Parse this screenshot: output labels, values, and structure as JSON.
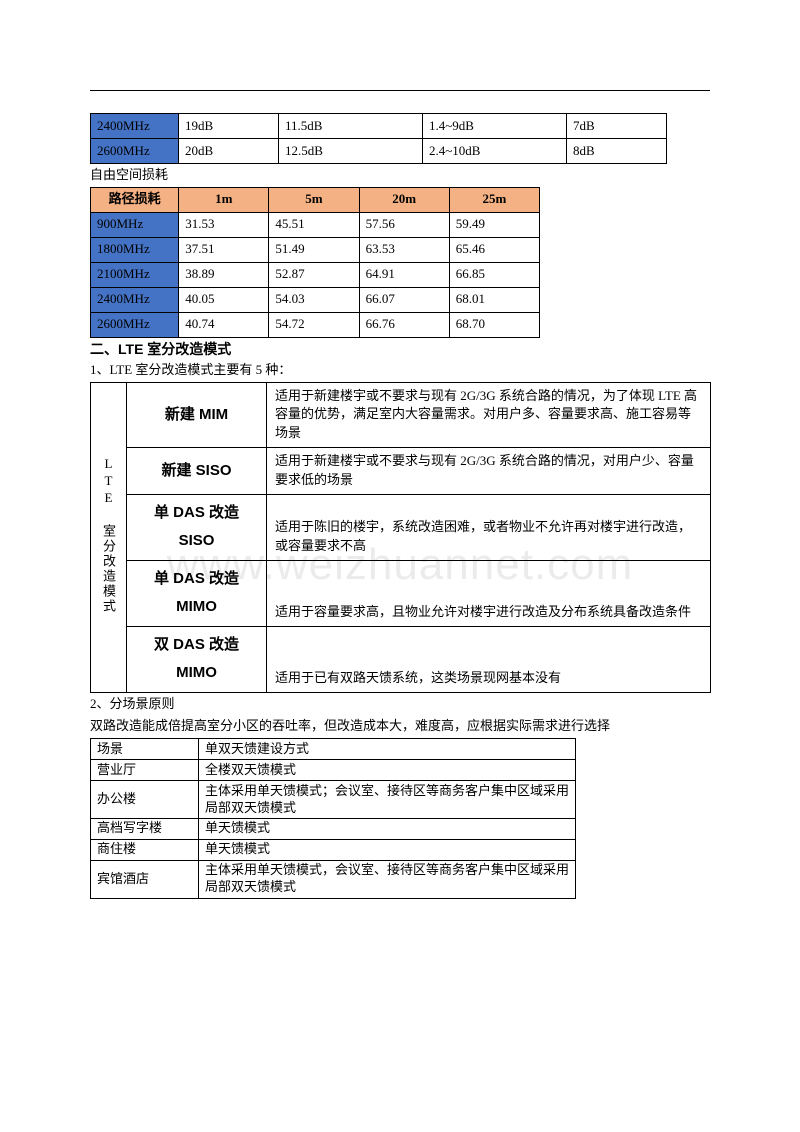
{
  "watermark": "www.weizhuannet.com",
  "colors": {
    "blue_header": "#4472c4",
    "orange_header": "#f4b183",
    "border": "#000000"
  },
  "table_top": {
    "type": "table",
    "rows": [
      [
        "2400MHz",
        "19dB",
        "11.5dB",
        "1.4~9dB",
        "7dB"
      ],
      [
        "2600MHz",
        "20dB",
        "12.5dB",
        "2.4~10dB",
        "8dB"
      ]
    ]
  },
  "loss_label": "自由空间损耗",
  "table_loss": {
    "type": "table",
    "headers": [
      "路径损耗",
      "1m",
      "5m",
      "20m",
      "25m"
    ],
    "rows": [
      [
        "900MHz",
        "31.53",
        "45.51",
        "57.56",
        "59.49"
      ],
      [
        "1800MHz",
        "37.51",
        "51.49",
        "63.53",
        "65.46"
      ],
      [
        "2100MHz",
        "38.89",
        "52.87",
        "64.91",
        "66.85"
      ],
      [
        "2400MHz",
        "40.05",
        "54.03",
        "66.07",
        "68.01"
      ],
      [
        "2600MHz",
        "40.74",
        "54.72",
        "66.76",
        "68.70"
      ]
    ]
  },
  "section2": {
    "title": "二、LTE 室分改造模式",
    "sub1": "1、LTE 室分改造模式主要有 5 种：",
    "vlabel": "LTE 室分改造模式",
    "modes": [
      {
        "name": "新建 MIM",
        "desc": "适用于新建楼宇或不要求与现有 2G/3G 系统合路的情况，为了体现 LTE 高容量的优势，满足室内大容量需求。对用户多、容量要求高、施工容易等场景"
      },
      {
        "name": "新建 SISO",
        "desc": "适用于新建楼宇或不要求与现有 2G/3G 系统合路的情况，对用户少、容量要求低的场景"
      },
      {
        "name_html": "单 DAS 改造<br>SISO",
        "desc": "适用于陈旧的楼宇，系统改造困难，或者物业不允许再对楼宇进行改造，或容量要求不高"
      },
      {
        "name_html": "单 DAS 改造<br>MIMO",
        "desc": "适用于容量要求高，且物业允许对楼宇进行改造及分布系统具备改造条件"
      },
      {
        "name_html": "双 DAS 改造<br>MIMO",
        "desc": "适用于已有双路天馈系统，这类场景现网基本没有"
      }
    ],
    "sub2": "2、分场景原则",
    "sub2_desc": "双路改造能成倍提高室分小区的吞吐率，但改造成本大，难度高，应根据实际需求进行选择"
  },
  "table_scene": {
    "type": "table",
    "headers": [
      "场景",
      "单双天馈建设方式"
    ],
    "rows": [
      [
        "营业厅",
        "全楼双天馈模式"
      ],
      [
        "办公楼",
        "主体采用单天馈模式；会议室、接待区等商务客户集中区域采用局部双天馈模式"
      ],
      [
        "高档写字楼",
        "单天馈模式"
      ],
      [
        "商住楼",
        "单天馈模式"
      ],
      [
        "宾馆酒店",
        "主体采用单天馈模式，会议室、接待区等商务客户集中区域采用局部双天馈模式"
      ]
    ]
  }
}
